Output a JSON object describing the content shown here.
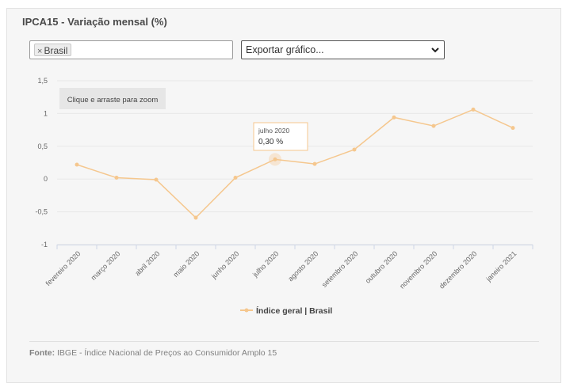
{
  "header": {
    "title": "IPCA15 - Variação mensal (%)"
  },
  "filter": {
    "chip_label": "Brasil",
    "remove_icon": "×"
  },
  "export": {
    "label": "Exportar gráfico...",
    "icon": "chevron-down-icon"
  },
  "zoom_hint": "Clique e arraste para zoom",
  "tooltip": {
    "title": "julho 2020",
    "value": "0,30 %"
  },
  "footer": {
    "source_label": "Fonte:",
    "source_text": "IBGE - Índice Nacional de Preços ao Consumidor Amplo 15"
  },
  "colors": {
    "series": "#f5c78e",
    "grid": "#e8e8e8",
    "panel": "#f6f6f6"
  },
  "chart_data": {
    "type": "line",
    "title": "IPCA15 - Variação mensal (%)",
    "xlabel": "",
    "ylabel": "",
    "categories": [
      "fevereiro 2020",
      "março 2020",
      "abril 2020",
      "maio 2020",
      "junho 2020",
      "julho 2020",
      "agosto 2020",
      "setembro 2020",
      "outubro 2020",
      "novembro 2020",
      "dezembro 2020",
      "janeiro 2021"
    ],
    "series": [
      {
        "name": "Índice geral | Brasil",
        "values": [
          0.22,
          0.02,
          -0.01,
          -0.59,
          0.02,
          0.3,
          0.23,
          0.45,
          0.94,
          0.81,
          1.06,
          0.78
        ]
      }
    ],
    "ylim": [
      -1,
      1.5
    ],
    "yticks": [
      -1,
      -0.5,
      0,
      0.5,
      1,
      1.5
    ],
    "ytick_labels": [
      "-1",
      "-0,5",
      "0",
      "0,5",
      "1",
      "1,5"
    ],
    "legend": [
      "Índice geral | Brasil"
    ],
    "legend_position": "bottom-center",
    "grid": true
  }
}
